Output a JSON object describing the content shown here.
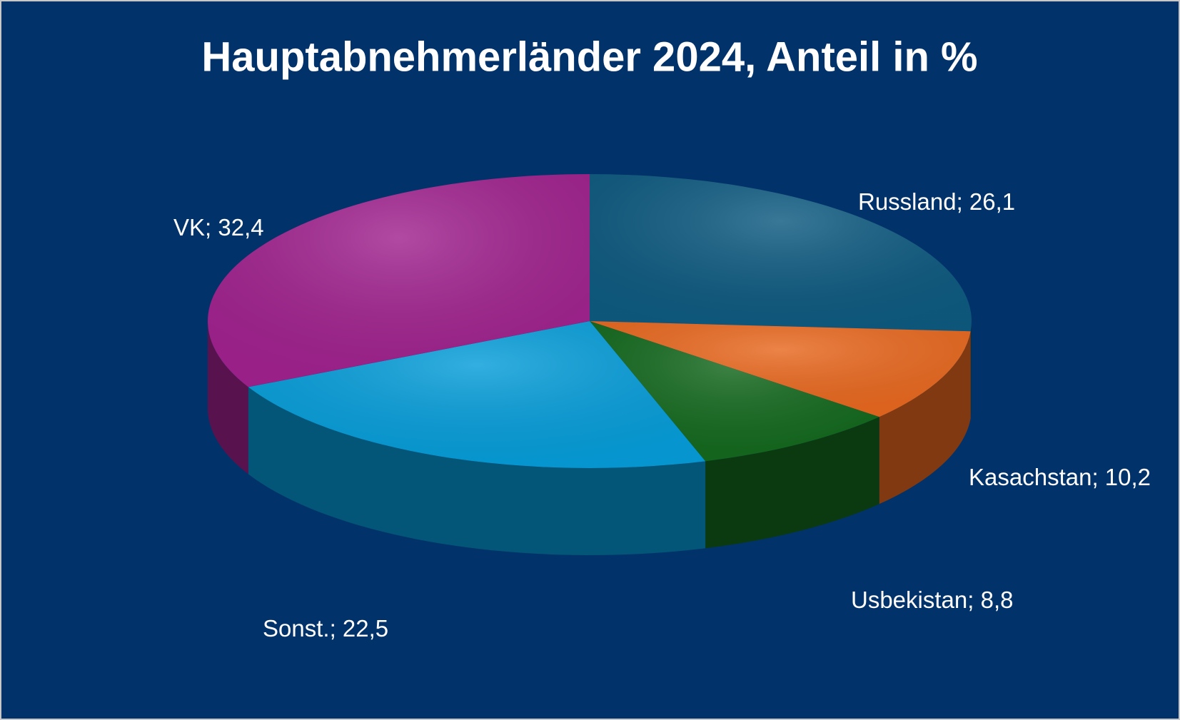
{
  "chart_data": {
    "type": "pie",
    "title": "Hauptabnehmerländer 2024, Anteil in %",
    "categories": [
      "Russland",
      "Kasachstan",
      "Usbekistan",
      "Sonst.",
      "VK"
    ],
    "values": [
      26.1,
      10.2,
      8.8,
      22.5,
      32.4
    ],
    "value_labels": [
      "26,1",
      "10,2",
      "8,8",
      "22,5",
      "32,4"
    ],
    "label_separator": "; ",
    "colors": [
      "#0e5a80",
      "#e8681f",
      "#14691e",
      "#069dd9",
      "#a0228e"
    ]
  }
}
